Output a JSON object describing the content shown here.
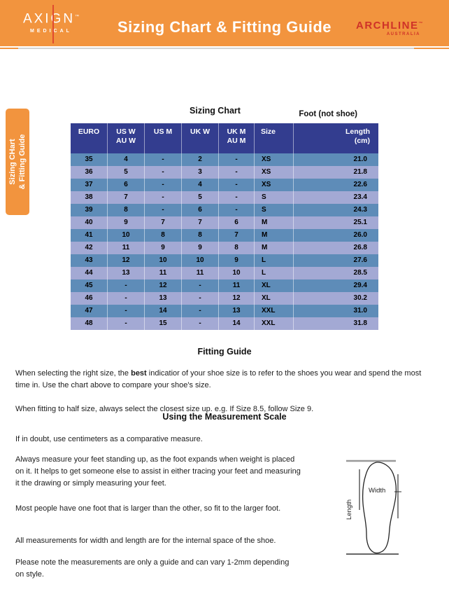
{
  "colors": {
    "orange": "#F2943E",
    "brand_red": "#CF3228",
    "logo_line_red": "#E04A2F",
    "header_blue": "#333D8F",
    "row_dark": "#5E8CB8",
    "row_light": "#A3A9D4",
    "text": "#1C1C1C"
  },
  "header": {
    "logo_axign": {
      "name": "AXIGN",
      "tm": "™",
      "sub": "MEDICAL"
    },
    "title": "Sizing Chart & Fitting Guide",
    "logo_archline": {
      "name": "ARCHLINE",
      "tm": "™",
      "sub": "AUSTRALIA"
    }
  },
  "side_tab": {
    "line1": "Sizing CHart",
    "line2": "& Fitting Guide"
  },
  "sizing_chart": {
    "title": "Sizing Chart",
    "note": "Foot (not shoe)",
    "columns": [
      [
        "EURO"
      ],
      [
        "US W",
        "AU W"
      ],
      [
        "US M"
      ],
      [
        "UK W"
      ],
      [
        "UK M",
        "AU M"
      ],
      [
        "Size"
      ],
      [
        "Length",
        "(cm)"
      ]
    ],
    "rows": [
      [
        "35",
        "4",
        "-",
        "2",
        "-",
        "XS",
        "21.0"
      ],
      [
        "36",
        "5",
        "-",
        "3",
        "-",
        "XS",
        "21.8"
      ],
      [
        "37",
        "6",
        "-",
        "4",
        "-",
        "XS",
        "22.6"
      ],
      [
        "38",
        "7",
        "-",
        "5",
        "-",
        "S",
        "23.4"
      ],
      [
        "39",
        "8",
        "-",
        "6",
        "-",
        "S",
        "24.3"
      ],
      [
        "40",
        "9",
        "7",
        "7",
        "6",
        "M",
        "25.1"
      ],
      [
        "41",
        "10",
        "8",
        "8",
        "7",
        "M",
        "26.0"
      ],
      [
        "42",
        "11",
        "9",
        "9",
        "8",
        "M",
        "26.8"
      ],
      [
        "43",
        "12",
        "10",
        "10",
        "9",
        "L",
        "27.6"
      ],
      [
        "44",
        "13",
        "11",
        "11",
        "10",
        "L",
        "28.5"
      ],
      [
        "45",
        "-",
        "12",
        "-",
        "11",
        "XL",
        "29.4"
      ],
      [
        "46",
        "-",
        "13",
        "-",
        "12",
        "XL",
        "30.2"
      ],
      [
        "47",
        "-",
        "14",
        "-",
        "13",
        "XXL",
        "31.0"
      ],
      [
        "48",
        "-",
        "15",
        "-",
        "14",
        "XXL",
        "31.8"
      ]
    ]
  },
  "fitting_guide": {
    "heading": "Fitting Guide",
    "para1": {
      "before": "When selecting the right size, the ",
      "bold": "best",
      "after": " indicatior of your shoe size is to refer to the shoes you wear and spend the most time in. Use the chart above to compare your shoe's size."
    },
    "para2": "When fitting to half size, always select the closest size up. e.g. If Size 8.5, follow Size 9."
  },
  "measurement_guide": {
    "heading": "Using the Measurement Scale",
    "para1": "If in doubt, use centimeters as a comparative measure.",
    "para2": "Always measure your feet standing up, as the foot expands when weight is placed\non it. It helps to get someone else to assist in either tracing your feet and measuring\nit the drawing or simply measuring your feet.",
    "para3": "Most people have one foot that is larger than the other, so fit to the larger foot.",
    "para4": "All measurements for width and length are for the internal space of the shoe.",
    "para5": "Please note the measurements are only a guide and can vary 1-2mm depending\non style.",
    "diagram": {
      "width_label": "Width",
      "length_label": "Length"
    }
  }
}
